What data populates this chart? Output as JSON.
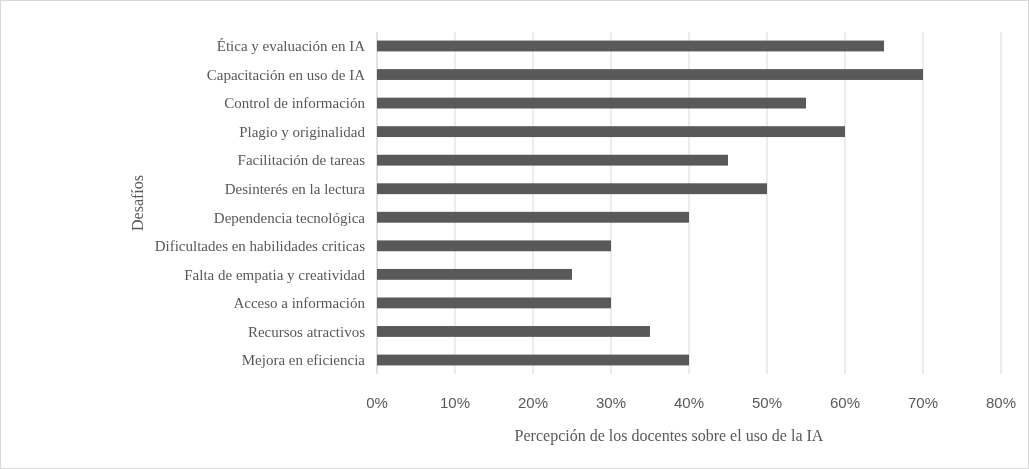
{
  "chart_data": {
    "type": "bar",
    "orientation": "horizontal",
    "xlabel": "Percepción de los docentes sobre el uso de la IA",
    "ylabel": "Desafíos",
    "categories": [
      "Ética y evaluación en IA",
      "Capacitación en uso de IA",
      "Control de información",
      "Plagio y originalidad",
      "Facilitación de tareas",
      "Desinterés en la lectura",
      "Dependencia tecnológica",
      "Dificultades en habilidades criticas",
      "Falta de empatia y creatividad",
      "Acceso a información",
      "Recursos atractivos",
      "Mejora en eficiencia"
    ],
    "values": [
      65,
      70,
      55,
      60,
      45,
      50,
      40,
      30,
      25,
      30,
      35,
      40
    ],
    "color": "#595959",
    "xlim": [
      0,
      80
    ],
    "xticks": [
      {
        "value": 0,
        "label": "0%"
      },
      {
        "value": 10,
        "label": "10%"
      },
      {
        "value": 20,
        "label": "20%"
      },
      {
        "value": 30,
        "label": "30%"
      },
      {
        "value": 40,
        "label": "40%"
      },
      {
        "value": 50,
        "label": "50%"
      },
      {
        "value": 60,
        "label": "60%"
      },
      {
        "value": 70,
        "label": "70%"
      },
      {
        "value": 80,
        "label": "80%"
      }
    ],
    "grid": "x"
  }
}
